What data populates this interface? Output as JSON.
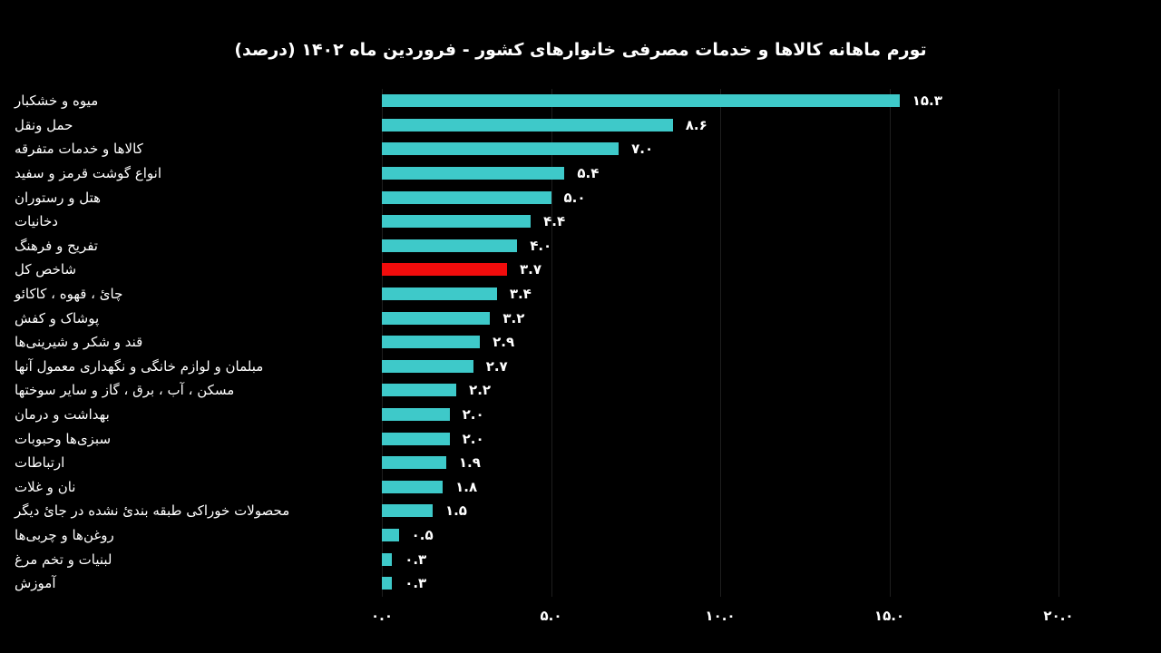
{
  "chart_data": {
    "type": "bar",
    "orientation": "horizontal",
    "title": "تورم ماهانه کالاها و خدمات مصرفی خانوارهای کشور - فروردین ماه ۱۴۰۲ (درصد)",
    "categories": [
      "میوه و خشکبار",
      "حمل ونقل",
      "کالاها و خدمات متفرقه",
      "انواع گوشت قرمز و سفید",
      "هتل و رستوران",
      "دخانیات",
      "تفریح و فرهنگ",
      "شاخص کل",
      "چائ ، قهوه ، کاکائو",
      "پوشاک و کفش",
      "قند و شکر و شیرینی‌ها",
      "مبلمان و لوازم خانگی و نگهداری معمول آنها",
      "مسکن ، آب ، برق ، گاز و سایر سوختها",
      "بهداشت و درمان",
      "سبزی‌ها وحبوبات",
      "ارتباطات",
      "نان و غلات",
      "محصولات خوراکی طبقه بندئ نشده در جائ دیگر",
      "روغن‌ها و چربی‌ها",
      "لبنیات و تخم مرغ",
      "آموزش"
    ],
    "values": [
      15.3,
      8.6,
      7.0,
      5.4,
      5.0,
      4.4,
      4.0,
      3.7,
      3.4,
      3.2,
      2.9,
      2.7,
      2.2,
      2.0,
      2.0,
      1.9,
      1.8,
      1.5,
      0.5,
      0.3,
      0.3
    ],
    "value_labels": [
      "۱۵.۳",
      "۸.۶",
      "۷.۰",
      "۵.۴",
      "۵.۰",
      "۴.۴",
      "۴.۰",
      "۳.۷",
      "۳.۴",
      "۳.۲",
      "۲.۹",
      "۲.۷",
      "۲.۲",
      "۲.۰",
      "۲.۰",
      "۱.۹",
      "۱.۸",
      "۱.۵",
      "۰.۵",
      "۰.۳",
      "۰.۳"
    ],
    "highlight_index": 7,
    "highlight_category": "شاخص کل",
    "xlim": [
      0,
      20
    ],
    "x_ticks": [
      0,
      5,
      10,
      15,
      20
    ],
    "x_tick_labels": [
      "۰.۰",
      "۵.۰",
      "۱۰.۰",
      "۱۵.۰",
      "۲۰.۰"
    ],
    "grid": "vertical-only",
    "legend": "none",
    "colors": {
      "bar": "#3ec9c9",
      "highlight_bar": "#f10c0c",
      "background": "#000000",
      "text": "#ffffff",
      "gridline": "#1e1e1e"
    }
  }
}
